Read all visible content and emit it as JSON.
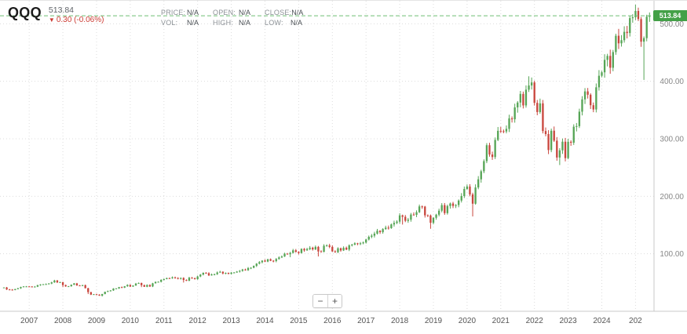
{
  "header": {
    "symbol": "QQQ",
    "price": "513.84",
    "change_arrow": "▼",
    "change": "0.30 (-0.06%)"
  },
  "legend": {
    "price_label": "PRICE:",
    "price_value": "N/A",
    "open_label": "OPEN:",
    "open_value": "N/A",
    "close_label": "CLOSE:",
    "close_value": "N/A",
    "vol_label": "VOL:",
    "vol_value": "N/A",
    "high_label": "HIGH:",
    "high_value": "N/A",
    "low_label": "LOW:",
    "low_value": "N/A"
  },
  "zoom": {
    "minus_label": "−",
    "plus_label": "+"
  },
  "chart_data": {
    "type": "candlestick",
    "title": "QQQ",
    "interval": "monthly",
    "start": "2006-04",
    "closes": [
      41.4,
      37.9,
      37.6,
      36.9,
      38.6,
      39.9,
      42.1,
      43.2,
      43.2,
      43.0,
      42.2,
      42.8,
      45.5,
      46.6,
      47.0,
      47.3,
      48.2,
      50.2,
      53.5,
      50.3,
      50.6,
      45.5,
      43.2,
      43.5,
      46.1,
      48.5,
      44.9,
      44.7,
      45.4,
      40.1,
      33.3,
      28.9,
      29.7,
      28.9,
      27.1,
      29.9,
      33.9,
      35.1,
      36.3,
      39.4,
      39.7,
      42.0,
      41.1,
      43.5,
      45.8,
      43.0,
      44.8,
      48.1,
      49.2,
      45.4,
      42.6,
      45.7,
      43.1,
      48.6,
      51.0,
      51.3,
      54.6,
      56.0,
      57.6,
      57.4,
      59.0,
      57.8,
      56.5,
      57.9,
      54.4,
      53.2,
      58.4,
      57.2,
      55.9,
      60.5,
      63.8,
      66.9,
      66.2,
      62.4,
      64.0,
      64.5,
      67.5,
      68.7,
      65.8,
      66.7,
      65.2,
      67.2,
      67.4,
      69.0,
      70.3,
      72.6,
      71.3,
      75.2,
      75.7,
      79.0,
      82.8,
      85.4,
      88.0,
      86.4,
      90.5,
      87.9,
      87.4,
      90.9,
      93.6,
      95.2,
      100.1,
      99.2,
      101.5,
      106.0,
      103.4,
      101.3,
      108.5,
      105.9,
      108.2,
      110.5,
      107.6,
      112.0,
      104.0,
      103.3,
      113.9,
      114.4,
      112.0,
      104.1,
      102.6,
      109.5,
      105.8,
      110.4,
      107.3,
      114.6,
      115.9,
      118.2,
      117.3,
      118.2,
      119.6,
      124.8,
      129.5,
      131.5,
      135.0,
      140.0,
      137.6,
      143.0,
      145.4,
      144.6,
      151.0,
      153.7,
      155.9,
      166.8,
      164.3,
      157.4,
      159.3,
      168.2,
      167.7,
      172.3,
      182.4,
      182.1,
      166.9,
      166.6,
      153.9,
      162.6,
      168.0,
      174.9,
      184.6,
      170.7,
      183.0,
      187.4,
      183.2,
      184.8,
      192.5,
      200.4,
      212.7,
      217.0,
      203.2,
      187.1,
      215.3,
      229.5,
      243.5,
      261.1,
      288.8,
      272.6,
      268.3,
      298.0,
      313.8,
      313.2,
      312.7,
      317.2,
      335.4,
      333.9,
      354.6,
      363.0,
      378.0,
      358.0,
      385.4,
      392.7,
      398.0,
      362.5,
      346.5,
      361.6,
      313.4,
      308.2,
      280.4,
      314.0,
      296.7,
      267.4,
      279.9,
      294.9,
      266.4,
      294.7,
      293.2,
      321.0,
      322.0,
      347.1,
      368.5,
      382.4,
      376.6,
      358.4,
      351.0,
      389.5,
      409.6,
      415.6,
      437.2,
      444.1,
      423.5,
      450.8,
      479.2,
      466.0,
      471.4,
      486.0,
      483.9,
      509.8,
      511.3,
      522.3,
      508.2,
      468.9,
      475.0,
      512.2,
      513.84
    ],
    "wick_overrides": {
      "2008-01": {
        "low": 42.0
      },
      "2008-10": {
        "low": 29.9
      },
      "2009-03": {
        "low": 25.7
      },
      "2010-05": {
        "low": 42.0
      },
      "2011-08": {
        "low": 50.0
      },
      "2014-10": {
        "low": 94.0
      },
      "2015-08": {
        "low": 95.3
      },
      "2018-02": {
        "low": 150.8
      },
      "2018-12": {
        "low": 143.5
      },
      "2020-03": {
        "low": 164.9
      },
      "2022-10": {
        "low": 254.3
      },
      "2025-04": {
        "low": 402.4
      },
      "2021-11": {
        "high": 408.7
      }
    },
    "x_labels": [
      "2007",
      "2008",
      "2009",
      "2010",
      "2011",
      "2012",
      "2013",
      "2014",
      "2015",
      "2016",
      "2017",
      "2018",
      "2019",
      "2020",
      "2021",
      "2022",
      "2023",
      "2024",
      "202"
    ],
    "y_ticks": [
      500,
      400,
      300,
      200,
      100
    ],
    "y_tick_labels": [
      "500.00",
      "400.00",
      "300.00",
      "200.00",
      "100.00"
    ],
    "ylim": [
      0,
      540
    ],
    "last_price": 513.84,
    "last_price_label": "513.84",
    "legend_position": "top-left",
    "grid": true,
    "colors": {
      "up": "#56a556",
      "down": "#c9463d",
      "grid": "#dcdcdc",
      "axis": "#c8c8c8",
      "x_label": "#555555",
      "y_label": "#888888",
      "last_price_line": "#6fbf73",
      "price_tag_bg": "#43a047",
      "change_down": "#cc3b33"
    }
  }
}
